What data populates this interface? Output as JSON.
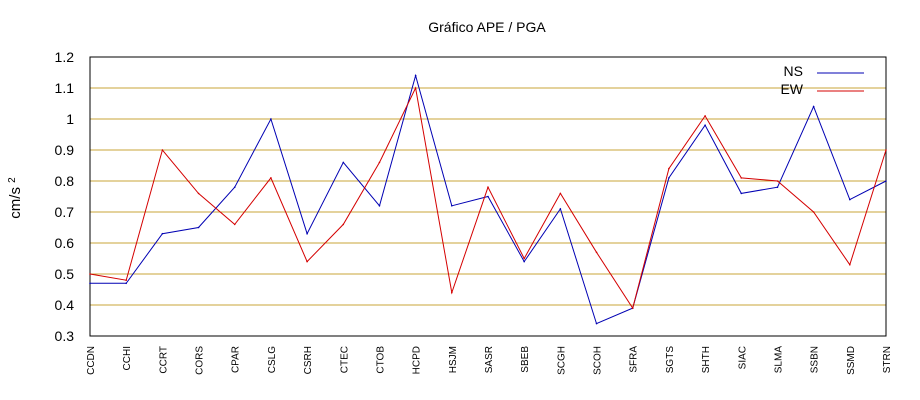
{
  "chart_data": {
    "type": "line",
    "title": "Gráfico  APE / PGA",
    "xlabel": "",
    "ylabel": "cm/s",
    "ylabel_sup": "2",
    "ylim": [
      0.3,
      1.2
    ],
    "yticks": [
      0.3,
      0.4,
      0.5,
      0.6,
      0.7,
      0.8,
      0.9,
      1.0,
      1.1,
      1.2
    ],
    "ytick_labels": [
      "0.3",
      "0.4",
      "0.5",
      "0.6",
      "0.7",
      "0.8",
      "0.9",
      "1",
      "1.1",
      "1.2"
    ],
    "grid": "horizontal",
    "legend_position": "top-right",
    "categories": [
      "CCDN",
      "CCHI",
      "CCRT",
      "CORS",
      "CPAR",
      "CSLG",
      "CSRH",
      "CTEC",
      "CTOB",
      "HCPD",
      "HSJM",
      "SASR",
      "SBEB",
      "SCGH",
      "SCOH",
      "SFRA",
      "SGTS",
      "SHTH",
      "SIAC",
      "SLMA",
      "SSBN",
      "SSMD",
      "STRN"
    ],
    "series": [
      {
        "name": "NS",
        "color": "#0000b3",
        "values": [
          0.47,
          0.47,
          0.63,
          0.65,
          0.78,
          1.0,
          0.63,
          0.86,
          0.72,
          1.14,
          0.72,
          0.75,
          0.54,
          0.71,
          0.34,
          0.39,
          0.81,
          0.98,
          0.76,
          0.78,
          1.04,
          0.74,
          0.8
        ]
      },
      {
        "name": "EW",
        "color": "#d40000",
        "values": [
          0.5,
          0.48,
          0.9,
          0.76,
          0.66,
          0.81,
          0.54,
          0.66,
          0.86,
          1.1,
          0.44,
          0.78,
          0.55,
          0.76,
          0.57,
          0.39,
          0.84,
          1.01,
          0.81,
          0.8,
          0.7,
          0.53,
          0.9
        ]
      }
    ],
    "colors": {
      "grid": "#c8a43a",
      "axis": "#000000"
    }
  }
}
